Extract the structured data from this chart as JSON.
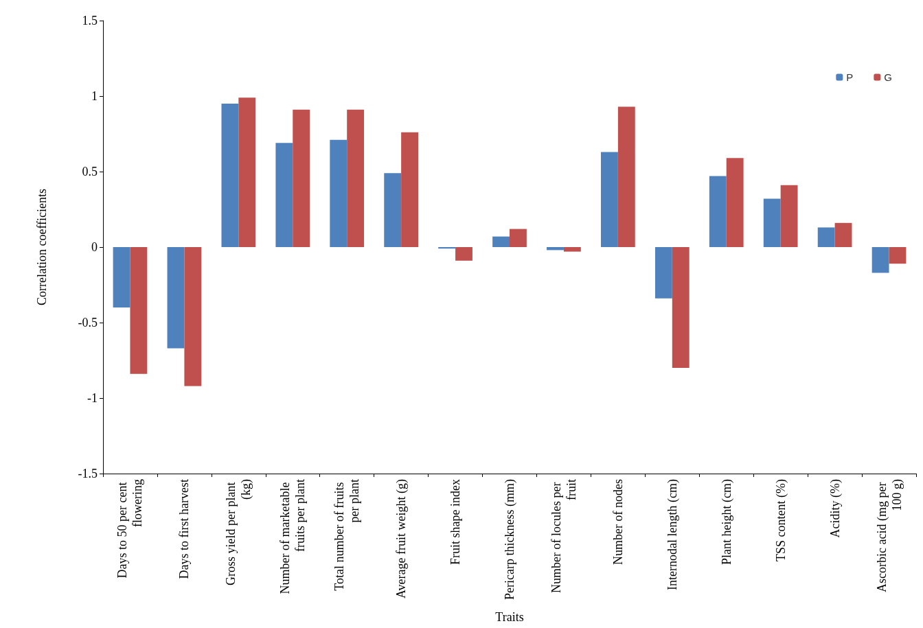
{
  "chart_data": {
    "type": "bar",
    "xlabel": "Traits",
    "ylabel": "Correlation coefficients",
    "categories": [
      "Days to 50 per cent flowering",
      "Days to first harvest",
      "Gross yield per plant (kg)",
      "Number of marketable fruits per plant",
      "Total number of fruits per plant",
      "Average fruit weight (g)",
      "Fruit shape index",
      "Pericarp thickness (mm)",
      "Number of locules per fruit",
      "Number of nodes",
      "Internodal length (cm)",
      "Plant height (cm)",
      "TSS content (%)",
      "Acidity (%)",
      "Ascorbic acid (mg per 100 g)"
    ],
    "series": [
      {
        "name": "P",
        "color": "#4f81bd",
        "values": [
          -0.4,
          -0.67,
          0.95,
          0.69,
          0.71,
          0.49,
          -0.01,
          0.07,
          -0.02,
          0.63,
          -0.34,
          0.47,
          0.32,
          0.13,
          -0.17
        ]
      },
      {
        "name": "G",
        "color": "#c0504d",
        "values": [
          -0.84,
          -0.92,
          0.99,
          0.91,
          0.91,
          0.76,
          -0.09,
          0.12,
          -0.03,
          0.93,
          -0.8,
          0.59,
          0.41,
          0.16,
          -0.11
        ]
      }
    ],
    "ylim": [
      -1.5,
      1.5
    ],
    "yticks": [
      -1.5,
      -1,
      -0.5,
      0,
      0.5,
      1,
      1.5
    ],
    "grid": false,
    "legend": "top right"
  }
}
